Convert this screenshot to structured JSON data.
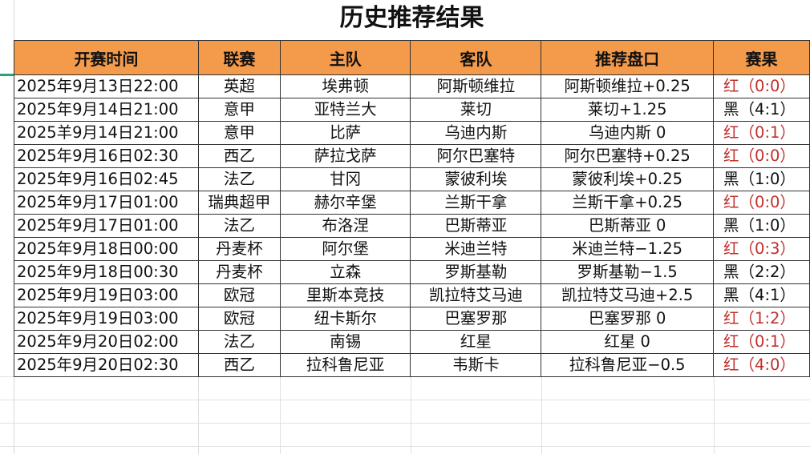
{
  "title": "历史推荐结果",
  "columns": [
    "开赛时间",
    "联赛",
    "主队",
    "客队",
    "推荐盘口",
    "赛果"
  ],
  "rows": [
    {
      "time": "2025年9月13日22:00",
      "league": "英超",
      "home": "埃弗顿",
      "away": "阿斯顿维拉",
      "pick": "阿斯顿维拉+0.25",
      "result": "红（0:0）",
      "color": "#c1302b"
    },
    {
      "time": "2025年9月14日21:00",
      "league": "意甲",
      "home": "亚特兰大",
      "away": "莱切",
      "pick": "莱切+1.25",
      "result": "黑（4:1）",
      "color": "#111111"
    },
    {
      "time": "2025羊9月14日21:00",
      "league": "意甲",
      "home": "比萨",
      "away": "乌迪内斯",
      "pick": "乌迪内斯 0",
      "result": "红（0:1）",
      "color": "#c1302b"
    },
    {
      "time": "2025年9月16日02:30",
      "league": "西乙",
      "home": "萨拉戈萨",
      "away": "阿尔巴塞特",
      "pick": "阿尔巴塞特+0.25",
      "result": "红（0:0）",
      "color": "#c1302b"
    },
    {
      "time": "2025年9月16日02:45",
      "league": "法乙",
      "home": "甘冈",
      "away": "蒙彼利埃",
      "pick": "蒙彼利埃+0.25",
      "result": "黑（1:0）",
      "color": "#111111"
    },
    {
      "time": "2025年9月17日01:00",
      "league": "瑞典超甲",
      "home": "赫尔辛堡",
      "away": "兰斯干拿",
      "pick": "兰斯干拿+0.25",
      "result": "红（0:0）",
      "color": "#c1302b"
    },
    {
      "time": "2025年9月17日01:00",
      "league": "法乙",
      "home": "布洛涅",
      "away": "巴斯蒂亚",
      "pick": "巴斯蒂亚 0",
      "result": "黑（1:0）",
      "color": "#111111"
    },
    {
      "time": "2025年9月18日00:00",
      "league": "丹麦杯",
      "home": "阿尔堡",
      "away": "米迪兰特",
      "pick": "米迪兰特−1.25",
      "result": "红（0:3）",
      "color": "#c1302b"
    },
    {
      "time": "2025年9月18日00:30",
      "league": "丹麦杯",
      "home": "立森",
      "away": "罗斯基勒",
      "pick": "罗斯基勒−1.5",
      "result": "黑（2:2）",
      "color": "#111111"
    },
    {
      "time": "2025年9月19日03:00",
      "league": "欧冠",
      "home": "里斯本竞技",
      "away": "凯拉特艾马迪",
      "pick": "凯拉特艾马迪+2.5",
      "result": "黑（4:1）",
      "color": "#111111"
    },
    {
      "time": "2025年9月19日03:00",
      "league": "欧冠",
      "home": "纽卡斯尔",
      "away": "巴塞罗那",
      "pick": "巴塞罗那 0",
      "result": "红（1:2）",
      "color": "#c1302b"
    },
    {
      "time": "2025年9月20日02:00",
      "league": "法乙",
      "home": "南锡",
      "away": "红星",
      "pick": "红星 0",
      "result": "红（0:1）",
      "color": "#c1302b"
    },
    {
      "time": "2025年9月20日02:30",
      "league": "西乙",
      "home": "拉科鲁尼亚",
      "away": "韦斯卡",
      "pick": "拉科鲁尼亚−0.5",
      "result": "红（4:0）",
      "color": "#c1302b"
    }
  ],
  "colors": {
    "header_bg": "#f39a4b",
    "win": "#c1302b",
    "loss": "#111111",
    "selection": "#1fa67a"
  }
}
